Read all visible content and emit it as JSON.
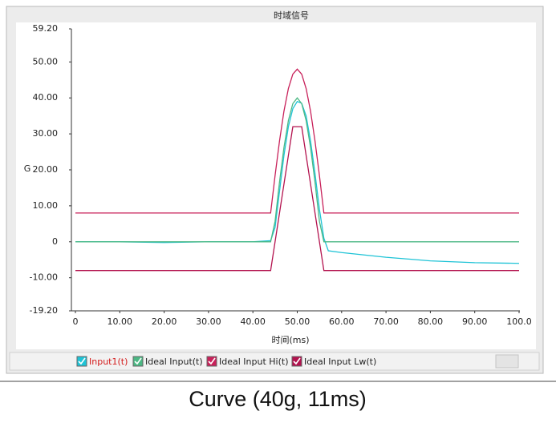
{
  "chart_data": {
    "type": "line",
    "title": "时域信号",
    "xlabel": "时间(ms)",
    "ylabel": "G",
    "caption": "Curve (40g, 11ms)",
    "x": [
      0,
      10,
      20,
      30,
      40,
      44,
      45,
      46,
      47,
      48,
      49,
      50,
      51,
      52,
      53,
      54,
      55,
      56,
      57,
      60,
      70,
      80,
      90,
      100
    ],
    "series": [
      {
        "name": "Input1(t)",
        "color": "#1ec3d6",
        "values": [
          0,
          0,
          -0.2,
          0,
          0,
          0.3,
          4,
          14,
          24,
          32,
          37,
          39,
          38.5,
          35,
          28,
          19,
          9,
          1,
          -2.5,
          -3,
          -4.3,
          -5.3,
          -5.8,
          -6
        ]
      },
      {
        "name": "Ideal Input(t)",
        "color": "#4cb884",
        "values": [
          0,
          0,
          0,
          0,
          0,
          0,
          5.7,
          16.6,
          26.2,
          33.7,
          38.4,
          40,
          38.4,
          33.7,
          26.2,
          16.6,
          5.7,
          0,
          0,
          0,
          0,
          0,
          0,
          0
        ]
      },
      {
        "name": "Ideal Input Hi(t)",
        "color": "#c8215a",
        "values": [
          8,
          8,
          8,
          8,
          8,
          8,
          18.4,
          28,
          36.3,
          42.6,
          46.6,
          48,
          46.6,
          42.6,
          36.3,
          28,
          18.4,
          8,
          8,
          8,
          8,
          8,
          8,
          8
        ]
      },
      {
        "name": "Ideal Input Lw(t)",
        "color": "#b3124e",
        "values": [
          -8,
          -8,
          -8,
          -8,
          -8,
          -8,
          0,
          8,
          16,
          24,
          32,
          32,
          32,
          24,
          16,
          8,
          0,
          -8,
          -8,
          -8,
          -8,
          -8,
          -8,
          -8
        ]
      }
    ],
    "xlim": [
      0,
      100
    ],
    "xticks": [
      0,
      {
        "value": 10,
        "label": "10.00"
      },
      {
        "value": 20,
        "label": "20.00"
      },
      {
        "value": 30,
        "label": "30.00"
      },
      {
        "value": 40,
        "label": "40.00"
      },
      {
        "value": 50,
        "label": "50.00"
      },
      {
        "value": 60,
        "label": "60.00"
      },
      {
        "value": 70,
        "label": "70.00"
      },
      {
        "value": 80,
        "label": "80.00"
      },
      {
        "value": 90,
        "label": "90.00"
      },
      {
        "value": 100,
        "label": "100.0"
      }
    ],
    "ylim": [
      -19.2,
      59.2
    ],
    "yticks": [
      {
        "value": -19.2,
        "label": "-19.20"
      },
      {
        "value": -10,
        "label": "-10.00"
      },
      0,
      {
        "value": 10,
        "label": "10.00"
      },
      {
        "value": 20,
        "label": "20.00"
      },
      {
        "value": 30,
        "label": "30.00"
      },
      {
        "value": 40,
        "label": "40.00"
      },
      {
        "value": 50,
        "label": "50.00"
      },
      {
        "value": 59.2,
        "label": "59.20"
      }
    ],
    "grid": false,
    "legend": "bottom"
  }
}
